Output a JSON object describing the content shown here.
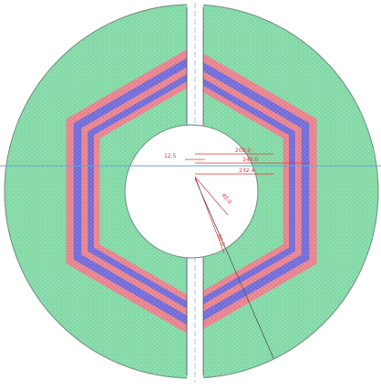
{
  "colors": {
    "background": "#ffffff",
    "disk_fill": "#8fe0b0",
    "disk_stroke": "#7a9a8a",
    "hex_red": "#ef8f9a",
    "hex_blue": "#7e78e0",
    "center_line": "#6aa6d8",
    "gap_line": "#445566",
    "dimension": "#e03a3a",
    "leader": "#555555"
  },
  "dimensions": {
    "d1": "12.5",
    "d2": "200.0",
    "d3": "240.0",
    "d4": "232.4",
    "d5": "40.0",
    "d6": "80.0"
  }
}
